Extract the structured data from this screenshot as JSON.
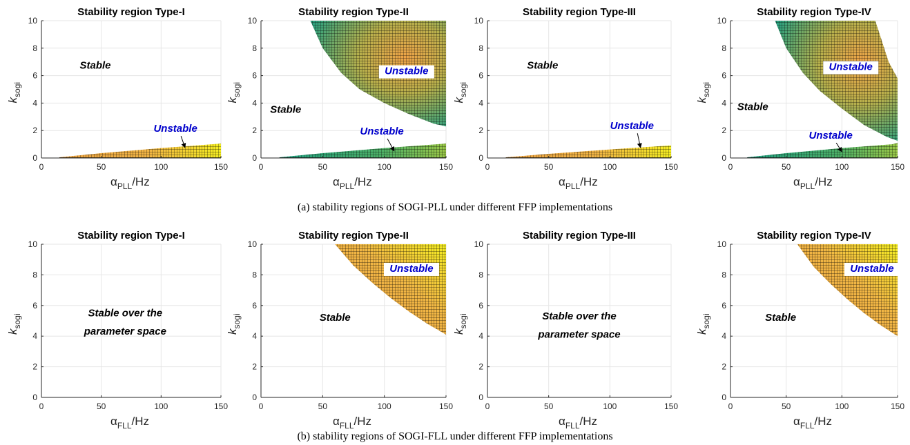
{
  "captions": [
    "(a) stability regions of SOGI-PLL under different FFP implementations",
    "(b) stability regions of SOGI-FLL under different FFP implementations"
  ],
  "colors": {
    "stable_text": "#000000",
    "unstable_text": "#0000cc",
    "map_green": "#2ca07c",
    "map_orange": "#f0a040",
    "map_yellow": "#f5f01e"
  },
  "chart_data": [
    {
      "id": "pll-type-1",
      "row": 0,
      "col": 0,
      "type": "heatmap",
      "title": "Stability region Type-I",
      "xlabel": "α",
      "xlabel_sub": "PLL",
      "xlabel_unit": "/Hz",
      "ylabel": "k",
      "ylabel_sub": "sogi",
      "xlim": [
        0,
        150
      ],
      "ylim": [
        0,
        10
      ],
      "xticks": [
        0,
        50,
        100,
        150
      ],
      "yticks": [
        0,
        2,
        4,
        6,
        8,
        10
      ],
      "grid": true,
      "regions": [
        {
          "label": "Unstable",
          "upper": [
            [
              15,
              0.05
            ],
            [
              50,
              0.35
            ],
            [
              100,
              0.72
            ],
            [
              150,
              1.05
            ]
          ],
          "lower": [
            [
              15,
              0
            ],
            [
              150,
              0
            ]
          ],
          "colormap": "wedge"
        }
      ],
      "annotations": [
        {
          "text": "Stable",
          "x": 45,
          "y": 6.5,
          "color": "stable",
          "box": false
        },
        {
          "text": "Unstable",
          "x": 112,
          "y": 1.9,
          "color": "unstable",
          "box": false,
          "arrow_to": [
            120,
            0.75
          ]
        }
      ]
    },
    {
      "id": "pll-type-2",
      "row": 0,
      "col": 1,
      "type": "heatmap",
      "title": "Stability region Type-II",
      "xlabel": "α",
      "xlabel_sub": "PLL",
      "xlabel_unit": "/Hz",
      "ylabel": "k",
      "ylabel_sub": "sogi",
      "xlim": [
        0,
        150
      ],
      "ylim": [
        0,
        10
      ],
      "xticks": [
        0,
        50,
        100,
        150
      ],
      "yticks": [
        0,
        2,
        4,
        6,
        8,
        10
      ],
      "grid": true,
      "regions": [
        {
          "label": "Unstable",
          "upper": [
            [
              40,
              10
            ],
            [
              150,
              10
            ]
          ],
          "lower": [
            [
              40,
              10
            ],
            [
              50,
              8.0
            ],
            [
              65,
              6.2
            ],
            [
              80,
              5.0
            ],
            [
              100,
              4.0
            ],
            [
              120,
              3.2
            ],
            [
              140,
              2.5
            ],
            [
              150,
              2.3
            ]
          ],
          "colormap": "top-dome"
        },
        {
          "label": "Unstable",
          "upper": [
            [
              15,
              0.05
            ],
            [
              50,
              0.35
            ],
            [
              100,
              0.72
            ],
            [
              150,
              1.05
            ]
          ],
          "lower": [
            [
              15,
              0
            ],
            [
              150,
              0
            ]
          ],
          "colormap": "wedge-green"
        }
      ],
      "annotations": [
        {
          "text": "Stable",
          "x": 20,
          "y": 3.3,
          "color": "stable",
          "box": false
        },
        {
          "text": "Unstable",
          "x": 118,
          "y": 6.1,
          "color": "unstable",
          "box": true
        },
        {
          "text": "Unstable",
          "x": 98,
          "y": 1.7,
          "color": "unstable",
          "box": false,
          "arrow_to": [
            108,
            0.5
          ]
        }
      ]
    },
    {
      "id": "pll-type-3",
      "row": 0,
      "col": 2,
      "type": "heatmap",
      "title": "Stability region Type-III",
      "xlabel": "α",
      "xlabel_sub": "PLL",
      "xlabel_unit": "/Hz",
      "ylabel": "k",
      "ylabel_sub": "sogi",
      "xlim": [
        0,
        150
      ],
      "ylim": [
        0,
        10
      ],
      "xticks": [
        0,
        50,
        100,
        150
      ],
      "yticks": [
        0,
        2,
        4,
        6,
        8,
        10
      ],
      "grid": true,
      "regions": [
        {
          "label": "Unstable",
          "upper": [
            [
              15,
              0.05
            ],
            [
              50,
              0.3
            ],
            [
              100,
              0.62
            ],
            [
              150,
              0.92
            ]
          ],
          "lower": [
            [
              15,
              0
            ],
            [
              150,
              0
            ]
          ],
          "colormap": "wedge"
        }
      ],
      "annotations": [
        {
          "text": "Stable",
          "x": 45,
          "y": 6.5,
          "color": "stable",
          "box": false
        },
        {
          "text": "Unstable",
          "x": 118,
          "y": 2.1,
          "color": "unstable",
          "box": false,
          "arrow_to": [
            125,
            0.75
          ]
        }
      ]
    },
    {
      "id": "pll-type-4",
      "row": 0,
      "col": 3,
      "type": "heatmap",
      "title": "Stability region Type-IV",
      "xlabel": "α",
      "xlabel_sub": "PLL",
      "xlabel_unit": "/Hz",
      "ylabel": "k",
      "ylabel_sub": "sogi",
      "xlim": [
        0,
        150
      ],
      "ylim": [
        0,
        10
      ],
      "xticks": [
        0,
        50,
        100,
        150
      ],
      "yticks": [
        0,
        2,
        4,
        6,
        8,
        10
      ],
      "grid": true,
      "regions": [
        {
          "label": "Unstable",
          "upper": [
            [
              40,
              10
            ],
            [
              130,
              10
            ],
            [
              142,
              7.0
            ],
            [
              150,
              5.8
            ],
            [
              150,
              1.25
            ]
          ],
          "lower": [
            [
              40,
              10
            ],
            [
              50,
              8.0
            ],
            [
              65,
              6.2
            ],
            [
              80,
              4.9
            ],
            [
              100,
              3.6
            ],
            [
              120,
              2.4
            ],
            [
              140,
              1.55
            ],
            [
              150,
              1.25
            ]
          ],
          "colormap": "top-dome"
        },
        {
          "label": "Unstable",
          "upper": [
            [
              15,
              0.05
            ],
            [
              50,
              0.35
            ],
            [
              100,
              0.72
            ],
            [
              145,
              1.0
            ],
            [
              150,
              1.1
            ]
          ],
          "lower": [
            [
              15,
              0
            ],
            [
              150,
              0
            ]
          ],
          "colormap": "wedge-green"
        }
      ],
      "annotations": [
        {
          "text": "Stable",
          "x": 20,
          "y": 3.5,
          "color": "stable",
          "box": false
        },
        {
          "text": "Unstable",
          "x": 108,
          "y": 6.4,
          "color": "unstable",
          "box": true
        },
        {
          "text": "Unstable",
          "x": 90,
          "y": 1.4,
          "color": "unstable",
          "box": false,
          "arrow_to": [
            100,
            0.45
          ]
        }
      ]
    },
    {
      "id": "fll-type-1",
      "row": 1,
      "col": 0,
      "type": "heatmap",
      "title": "Stability region Type-I",
      "xlabel": "α",
      "xlabel_sub": "FLL",
      "xlabel_unit": "/Hz",
      "ylabel": "k",
      "ylabel_sub": "sogi",
      "xlim": [
        0,
        150
      ],
      "ylim": [
        0,
        10
      ],
      "xticks": [
        0,
        50,
        100,
        150
      ],
      "yticks": [
        0,
        2,
        4,
        6,
        8,
        10
      ],
      "grid": true,
      "regions": [],
      "annotations": [
        {
          "text": "Stable over the",
          "x": 70,
          "y": 5.3,
          "color": "stable",
          "box": false
        },
        {
          "text": "parameter space",
          "x": 70,
          "y": 4.1,
          "color": "stable",
          "box": false
        }
      ]
    },
    {
      "id": "fll-type-2",
      "row": 1,
      "col": 1,
      "type": "heatmap",
      "title": "Stability region Type-II",
      "xlabel": "α",
      "xlabel_sub": "FLL",
      "xlabel_unit": "/Hz",
      "ylabel": "k",
      "ylabel_sub": "sogi",
      "xlim": [
        0,
        150
      ],
      "ylim": [
        0,
        10
      ],
      "xticks": [
        0,
        50,
        100,
        150
      ],
      "yticks": [
        0,
        2,
        4,
        6,
        8,
        10
      ],
      "grid": true,
      "regions": [
        {
          "label": "Unstable",
          "upper": [
            [
              60,
              10
            ],
            [
              150,
              10
            ]
          ],
          "lower": [
            [
              60,
              10
            ],
            [
              75,
              8.6
            ],
            [
              90,
              7.5
            ],
            [
              105,
              6.5
            ],
            [
              120,
              5.6
            ],
            [
              135,
              4.8
            ],
            [
              150,
              4.1
            ]
          ],
          "colormap": "fll"
        }
      ],
      "annotations": [
        {
          "text": "Stable",
          "x": 60,
          "y": 5.0,
          "color": "stable",
          "box": false
        },
        {
          "text": "Unstable",
          "x": 122,
          "y": 8.2,
          "color": "unstable",
          "box": true
        }
      ]
    },
    {
      "id": "fll-type-3",
      "row": 1,
      "col": 2,
      "type": "heatmap",
      "title": "Stability region Type-III",
      "xlabel": "α",
      "xlabel_sub": "FLL",
      "xlabel_unit": "/Hz",
      "ylabel": "k",
      "ylabel_sub": "sogi",
      "xlim": [
        0,
        150
      ],
      "ylim": [
        0,
        10
      ],
      "xticks": [
        0,
        50,
        100,
        150
      ],
      "yticks": [
        0,
        2,
        4,
        6,
        8,
        10
      ],
      "grid": true,
      "regions": [],
      "annotations": [
        {
          "text": "Stable over the",
          "x": 75,
          "y": 5.1,
          "color": "stable",
          "box": false
        },
        {
          "text": "parameter space",
          "x": 75,
          "y": 3.9,
          "color": "stable",
          "box": false
        }
      ]
    },
    {
      "id": "fll-type-4",
      "row": 1,
      "col": 3,
      "type": "heatmap",
      "title": "Stability region Type-IV",
      "xlabel": "α",
      "xlabel_sub": "FLL",
      "xlabel_unit": "/Hz",
      "ylabel": "k",
      "ylabel_sub": "sogi",
      "xlim": [
        0,
        150
      ],
      "ylim": [
        0,
        10
      ],
      "xticks": [
        0,
        50,
        100,
        150
      ],
      "yticks": [
        0,
        2,
        4,
        6,
        8,
        10
      ],
      "grid": true,
      "regions": [
        {
          "label": "Unstable",
          "upper": [
            [
              60,
              10
            ],
            [
              150,
              10
            ]
          ],
          "lower": [
            [
              60,
              10
            ],
            [
              75,
              8.5
            ],
            [
              90,
              7.4
            ],
            [
              105,
              6.4
            ],
            [
              120,
              5.5
            ],
            [
              135,
              4.7
            ],
            [
              150,
              4.0
            ]
          ],
          "colormap": "fll"
        }
      ],
      "annotations": [
        {
          "text": "Stable",
          "x": 45,
          "y": 5.0,
          "color": "stable",
          "box": false
        },
        {
          "text": "Unstable",
          "x": 127,
          "y": 8.2,
          "color": "unstable",
          "box": true
        }
      ]
    }
  ]
}
